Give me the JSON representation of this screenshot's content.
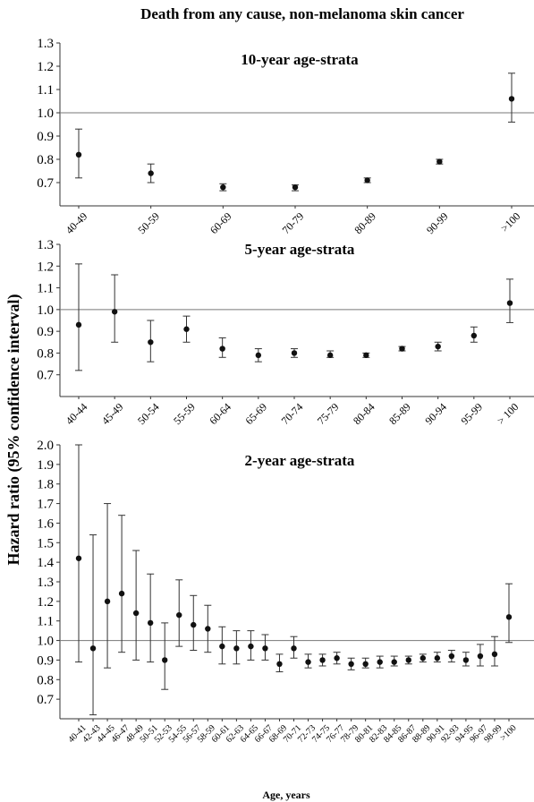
{
  "title": "Death from any cause, non-melanoma skin cancer",
  "ylabel": "Hazard ratio (95% confidence interval)",
  "xlabel": "Age, years",
  "chart_data": [
    {
      "type": "scatter",
      "subtitle": "10-year age-strata",
      "ylim": [
        0.6,
        1.3
      ],
      "yticks": [
        "0.7",
        "0.8",
        "0.9",
        "1.0",
        "1.1",
        "1.2",
        "1.3"
      ],
      "reference_line": 1.0,
      "error_bars": true,
      "categories": [
        "40-49",
        "50-59",
        "60-69",
        "70-79",
        "80-89",
        "90-99",
        ">100"
      ],
      "values": [
        0.82,
        0.74,
        0.68,
        0.68,
        0.71,
        0.79,
        1.06
      ],
      "lower": [
        0.72,
        0.7,
        0.665,
        0.665,
        0.7,
        0.78,
        0.96
      ],
      "upper": [
        0.93,
        0.78,
        0.695,
        0.69,
        0.72,
        0.8,
        1.17
      ]
    },
    {
      "type": "scatter",
      "subtitle": "5-year age-strata",
      "ylim": [
        0.6,
        1.3
      ],
      "yticks": [
        "0.7",
        "0.8",
        "0.9",
        "1.0",
        "1.1",
        "1.2",
        "1.3"
      ],
      "reference_line": 1.0,
      "error_bars": true,
      "categories": [
        "40-44",
        "45-49",
        "50-54",
        "55-59",
        "60-64",
        "65-69",
        "70-74",
        "75-79",
        "80-84",
        "85-89",
        "90-94",
        "95-99",
        "> 100"
      ],
      "values": [
        0.93,
        0.99,
        0.85,
        0.91,
        0.82,
        0.79,
        0.8,
        0.79,
        0.79,
        0.82,
        0.83,
        0.88,
        1.03
      ],
      "lower": [
        0.72,
        0.85,
        0.76,
        0.85,
        0.78,
        0.76,
        0.78,
        0.78,
        0.78,
        0.81,
        0.81,
        0.85,
        0.94
      ],
      "upper": [
        1.21,
        1.16,
        0.95,
        0.97,
        0.87,
        0.82,
        0.82,
        0.81,
        0.8,
        0.83,
        0.85,
        0.92,
        1.14
      ]
    },
    {
      "type": "scatter",
      "subtitle": "2-year age-strata",
      "ylim": [
        0.6,
        2.0
      ],
      "yticks": [
        "0.7",
        "0.8",
        "0.9",
        "1.0",
        "1.1",
        "1.2",
        "1.3",
        "1.4",
        "1.5",
        "1.6",
        "1.7",
        "1.8",
        "1.9",
        "2.0"
      ],
      "reference_line": 1.0,
      "error_bars": true,
      "categories": [
        "40-41",
        "42-43",
        "44-45",
        "46-47",
        "48-49",
        "50-51",
        "52-53",
        "54-55",
        "56-57",
        "58-59",
        "60-61",
        "62-63",
        "64-65",
        "66-67",
        "68-69",
        "70-71",
        "72-73",
        "74-75",
        "76-77",
        "78-79",
        "80-81",
        "82-83",
        "84-85",
        "86-87",
        "88-89",
        "90-91",
        "92-93",
        "94-95",
        "96-97",
        "98-99",
        ">100"
      ],
      "values": [
        1.42,
        0.96,
        1.2,
        1.24,
        1.14,
        1.09,
        0.9,
        1.13,
        1.08,
        1.06,
        0.97,
        0.96,
        0.97,
        0.96,
        0.88,
        0.96,
        0.89,
        0.9,
        0.91,
        0.88,
        0.88,
        0.89,
        0.89,
        0.9,
        0.91,
        0.91,
        0.92,
        0.9,
        0.92,
        0.93,
        1.12
      ],
      "lower": [
        0.89,
        0.62,
        0.86,
        0.94,
        0.9,
        0.89,
        0.75,
        0.97,
        0.95,
        0.94,
        0.88,
        0.88,
        0.9,
        0.9,
        0.84,
        0.91,
        0.86,
        0.87,
        0.88,
        0.85,
        0.86,
        0.86,
        0.87,
        0.88,
        0.89,
        0.89,
        0.89,
        0.87,
        0.87,
        0.87,
        0.99
      ],
      "upper": [
        2.0,
        1.54,
        1.7,
        1.64,
        1.46,
        1.34,
        1.09,
        1.31,
        1.23,
        1.18,
        1.07,
        1.05,
        1.05,
        1.03,
        0.93,
        1.02,
        0.93,
        0.93,
        0.94,
        0.91,
        0.91,
        0.92,
        0.92,
        0.92,
        0.93,
        0.94,
        0.95,
        0.94,
        0.98,
        1.02,
        1.29
      ]
    }
  ]
}
